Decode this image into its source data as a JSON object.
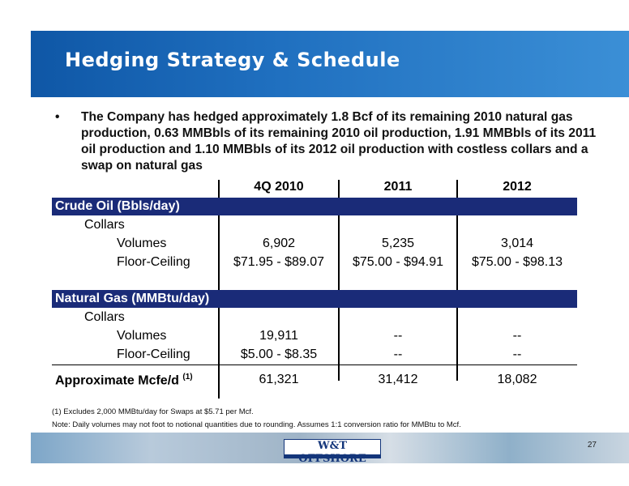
{
  "title": "Hedging Strategy & Schedule",
  "bullet": {
    "symbol": "•",
    "text": "The Company has hedged approximately 1.8 Bcf of its remaining 2010 natural gas production, 0.63 MMBbls of its remaining 2010 oil production, 1.91 MMBbls of its 2011 oil production and 1.10 MMBbls of its 2012 oil production with costless collars and a swap on natural gas"
  },
  "table": {
    "columns": [
      "4Q 2010",
      "2011",
      "2012"
    ],
    "crude": {
      "band": "Crude Oil (Bbls/day)",
      "collars_label": "Collars",
      "volumes_label": "Volumes",
      "floor_label": "Floor-Ceiling",
      "volumes": [
        "6,902",
        "5,235",
        "3,014"
      ],
      "floor": [
        "$71.95  -  $89.07",
        "$75.00  -  $94.91",
        "$75.00  -  $98.13"
      ]
    },
    "gas": {
      "band": "Natural Gas (MMBtu/day)",
      "collars_label": "Collars",
      "volumes_label": "Volumes",
      "floor_label": "Floor-Ceiling",
      "volumes": [
        "19,911",
        "--",
        "--"
      ],
      "floor": [
        "$5.00  -  $8.35",
        "--",
        "--"
      ]
    },
    "total": {
      "label": "Approximate Mcfe/d",
      "note_ref": "(1)",
      "values": [
        "61,321",
        "31,412",
        "18,082"
      ]
    }
  },
  "footnote": "(1)  Excludes 2,000 MMBtu/day for Swaps at $5.71 per Mcf.",
  "note": "Note: Daily volumes may not foot to notional quantities due to rounding.  Assumes 1:1 conversion ratio for MMBtu to Mcf.",
  "logo": "W&T OFFSHORE",
  "page_number": "27"
}
